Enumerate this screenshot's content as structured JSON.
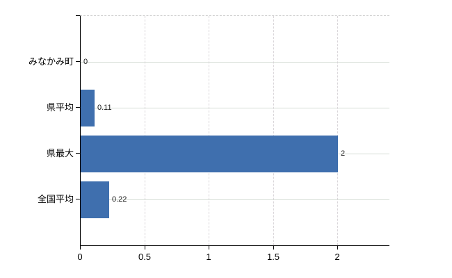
{
  "chart_data": {
    "type": "bar",
    "orientation": "horizontal",
    "title": "",
    "xlabel": "",
    "ylabel": "",
    "categories": [
      "みなかみ町",
      "県平均",
      "県最大",
      "全国平均"
    ],
    "values": [
      0,
      0.11,
      2,
      0.22
    ],
    "value_labels": [
      "0",
      "0.11",
      "2",
      "0.22"
    ],
    "x_ticks": [
      0,
      0.5,
      1,
      1.5,
      2
    ],
    "x_tick_labels": [
      "0",
      "0.5",
      "1",
      "1.5",
      "2"
    ],
    "xlim": [
      0,
      2.4
    ],
    "grid": true,
    "legend": "none",
    "bar_color": "#3f6fae"
  },
  "colors": {
    "bar": "#3f6fae",
    "axis": "#000000",
    "horizontal_gridline": "#d4dcd4",
    "vertical_gridline": "#d8d4d8",
    "top_border": "#cfcfcf",
    "label_text": "#000000",
    "value_text": "#1a1a1a",
    "background": "#ffffff"
  }
}
